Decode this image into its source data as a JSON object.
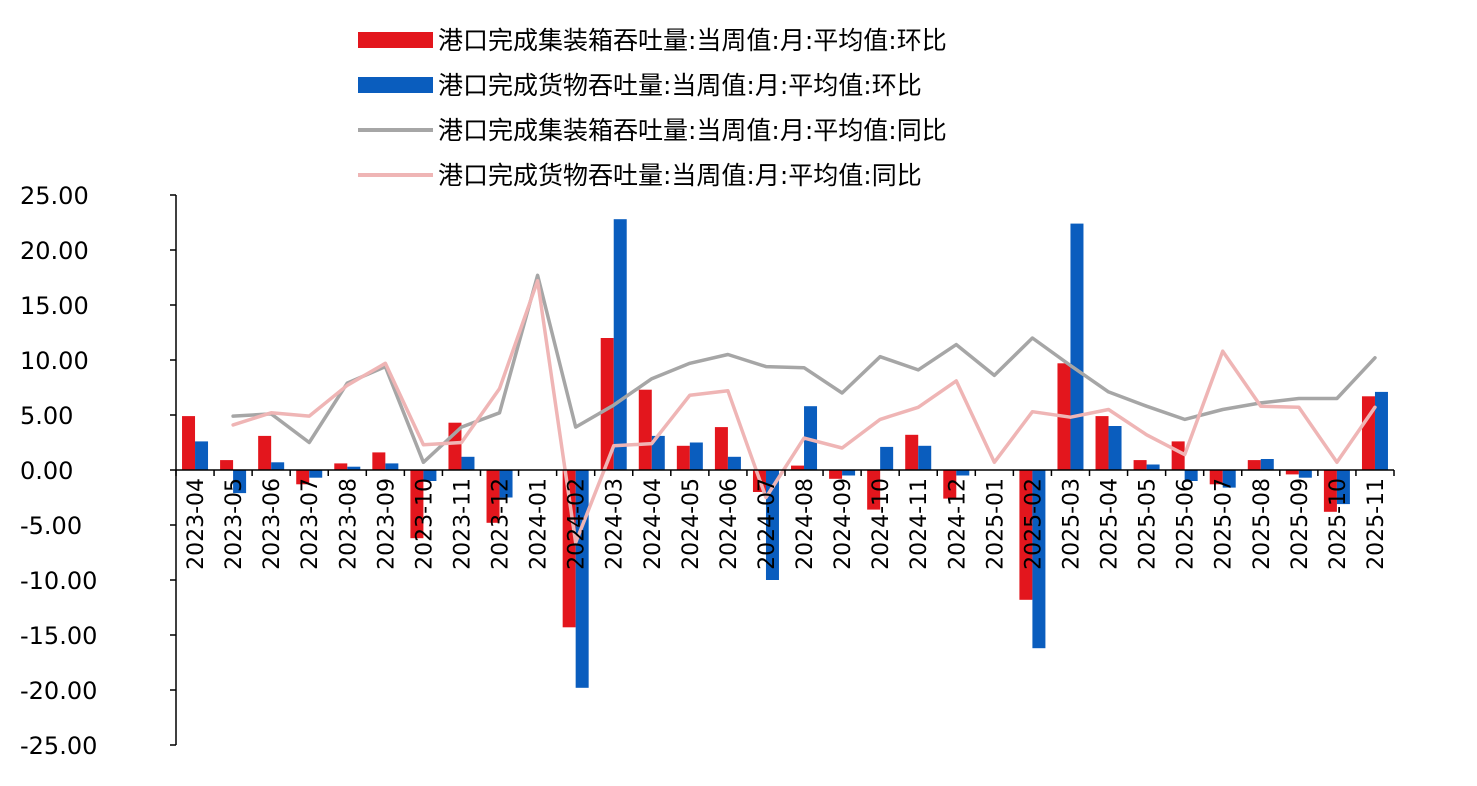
{
  "chart_data": {
    "type": "bar",
    "title": "",
    "xlabel": "",
    "ylabel": "",
    "ylim": [
      -25,
      25
    ],
    "yticks": [
      25,
      20,
      15,
      10,
      5,
      0,
      -5,
      -10,
      -15,
      -20,
      -25
    ],
    "ytick_labels": [
      "25.00",
      "20.00",
      "15.00",
      "10.00",
      "5.00",
      "0.00",
      "-5.00",
      "-10.00",
      "-15.00",
      "-20.00",
      "-25.00"
    ],
    "legend_position": "top-center",
    "grid": false,
    "categories": [
      "2023-04",
      "2023-05",
      "2023-06",
      "2023-07",
      "2023-08",
      "2023-09",
      "2023-10",
      "2023-11",
      "2023-12",
      "2024-01",
      "2024-02",
      "2024-03",
      "2024-04",
      "2024-05",
      "2024-06",
      "2024-07",
      "2024-08",
      "2024-09",
      "2024-10",
      "2024-11",
      "2024-12",
      "2025-01",
      "2025-02",
      "2025-03",
      "2025-04",
      "2025-05",
      "2025-06",
      "2025-07",
      "2025-08",
      "2025-09",
      "2025-10",
      "2025-11"
    ],
    "series": [
      {
        "name": "港口完成集装箱吞吐量:当周值:月:平均值:环比",
        "kind": "bar",
        "color": "#E3161D",
        "values": [
          4.9,
          0.9,
          3.1,
          -1.3,
          0.6,
          1.6,
          -6.2,
          4.3,
          -4.8,
          null,
          -14.3,
          12.0,
          7.3,
          2.2,
          3.9,
          -2.0,
          0.4,
          -0.8,
          -3.6,
          3.2,
          -2.6,
          null,
          -11.8,
          9.7,
          4.9,
          0.9,
          2.6,
          -1.3,
          0.9,
          -0.4,
          -3.8,
          6.7
        ]
      },
      {
        "name": "港口完成货物吞吐量:当周值:月:平均值:环比",
        "kind": "bar",
        "color": "#0A5DBE",
        "values": [
          2.6,
          -2.1,
          0.7,
          -0.7,
          0.3,
          0.6,
          -1.0,
          1.2,
          -2.5,
          null,
          -19.8,
          22.8,
          3.1,
          2.5,
          1.2,
          -10.0,
          5.8,
          -0.5,
          2.1,
          2.2,
          -0.5,
          null,
          -16.2,
          22.4,
          4.0,
          0.5,
          -1.0,
          -1.6,
          1.0,
          -0.7,
          -3.1,
          7.1
        ]
      },
      {
        "name": "港口完成集装箱吞吐量:当周值:月:平均值:同比",
        "kind": "line",
        "color": "#A6A6A6",
        "values": [
          null,
          4.9,
          5.1,
          2.5,
          7.9,
          9.4,
          0.7,
          3.9,
          5.2,
          17.7,
          3.9,
          5.9,
          8.3,
          9.7,
          10.5,
          9.4,
          9.3,
          7.0,
          10.3,
          9.1,
          11.4,
          8.6,
          12.0,
          9.5,
          7.1,
          5.8,
          4.6,
          5.5,
          6.1,
          6.5,
          6.5,
          10.2
        ]
      },
      {
        "name": "港口完成货物吞吐量:当周值:月:平均值:同比",
        "kind": "line",
        "color": "#EFB5B5",
        "values": [
          null,
          4.1,
          5.2,
          4.9,
          7.7,
          9.7,
          2.3,
          2.5,
          7.4,
          17.2,
          -6.6,
          2.2,
          2.4,
          6.8,
          7.2,
          -2.5,
          2.9,
          2.0,
          4.6,
          5.7,
          8.1,
          0.7,
          5.3,
          4.8,
          5.5,
          3.2,
          1.4,
          10.8,
          5.8,
          5.7,
          0.7,
          5.7
        ]
      }
    ]
  }
}
